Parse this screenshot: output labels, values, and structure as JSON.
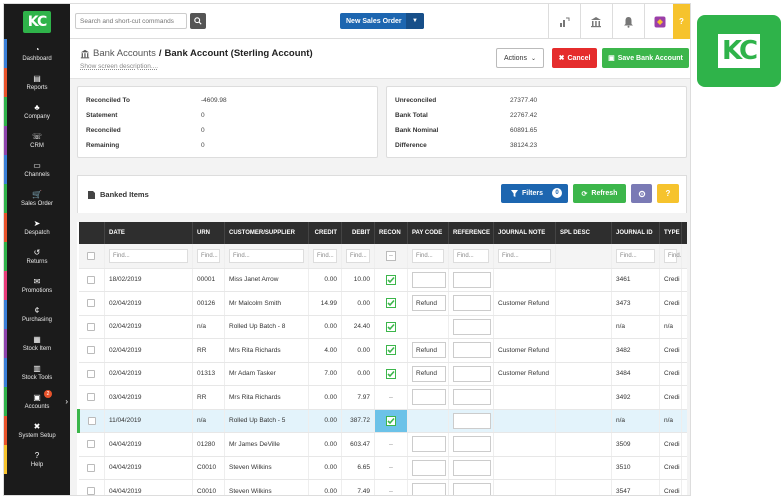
{
  "brand": {
    "logo_text": "KC"
  },
  "sidebar": {
    "items": [
      {
        "label": "Dashboard",
        "stripe": "#3a7fd8"
      },
      {
        "label": "Reports",
        "stripe": "#e8532b"
      },
      {
        "label": "Company",
        "stripe": "#2fb34a"
      },
      {
        "label": "CRM",
        "stripe": "#8e44ad"
      },
      {
        "label": "Channels",
        "stripe": "#3a7fd8"
      },
      {
        "label": "Sales Order",
        "stripe": "#2fb34a"
      },
      {
        "label": "Despatch",
        "stripe": "#e8532b"
      },
      {
        "label": "Returns",
        "stripe": "#2fb34a"
      },
      {
        "label": "Promotions",
        "stripe": "#e83b7a"
      },
      {
        "label": "Purchasing",
        "stripe": "#3a7fd8"
      },
      {
        "label": "Stock Item",
        "stripe": "#8e44ad"
      },
      {
        "label": "Stock Tools",
        "stripe": "#3a7fd8"
      },
      {
        "label": "Accounts",
        "stripe": "#2fb34a",
        "badge": "2"
      },
      {
        "label": "System Setup",
        "stripe": "#e8532b"
      },
      {
        "label": "Help",
        "stripe": "#f6c32d"
      }
    ]
  },
  "topbar": {
    "search_placeholder": "Search and short-cut commands",
    "new_sales_order": "New Sales Order",
    "help": "?"
  },
  "header": {
    "breadcrumb_parent": "Bank Accounts",
    "separator": "/",
    "title": "Bank Account (Sterling Account)",
    "screen_description": "Show screen description....",
    "actions": "Actions",
    "cancel": "Cancel",
    "save": "Save Bank Account"
  },
  "summary_left": [
    {
      "k": "Reconciled To",
      "v": "-4609.98"
    },
    {
      "k": "Statement",
      "v": "0"
    },
    {
      "k": "Reconciled",
      "v": "0"
    },
    {
      "k": "Remaining",
      "v": "0"
    }
  ],
  "summary_right": [
    {
      "k": "Unreconciled",
      "v": "27377.40"
    },
    {
      "k": "Bank Total",
      "v": "22767.42"
    },
    {
      "k": "Bank Nominal",
      "v": "60891.65"
    },
    {
      "k": "Difference",
      "v": "38124.23"
    }
  ],
  "banked": {
    "title": "Banked Items",
    "filters": "Filters",
    "filter_count": "0",
    "refresh": "Refresh",
    "question": "?"
  },
  "table": {
    "columns": [
      "",
      "DATE",
      "URN",
      "CUSTOMER/SUPPLIER",
      "CREDIT",
      "DEBIT",
      "RECON",
      "PAY CODE",
      "REFERENCE",
      "JOURNAL NOTE",
      "SPL DESC",
      "JOURNAL ID",
      "TYPE",
      ""
    ],
    "find_placeholder": "Find...",
    "find_short": "Find...",
    "rows": [
      {
        "date": "18/02/2019",
        "urn": "00001",
        "cust": "Miss Janet Arrow",
        "credit": "0.00",
        "debit": "10.00",
        "recon": "on",
        "pay": "",
        "note": "",
        "jid": "3461",
        "type": "Credi",
        "inputs": true
      },
      {
        "date": "02/04/2019",
        "urn": "00126",
        "cust": "Mr Malcolm Smith",
        "credit": "14.99",
        "debit": "0.00",
        "recon": "on",
        "pay": "Refund",
        "note": "Customer Refund",
        "jid": "3473",
        "type": "Credi",
        "inputs": true
      },
      {
        "date": "02/04/2019",
        "urn": "n/a",
        "cust": "Rolled Up Batch - 8",
        "credit": "0.00",
        "debit": "24.40",
        "recon": "on",
        "pay": "",
        "note": "",
        "jid": "n/a",
        "type": "n/a",
        "inputs": false
      },
      {
        "date": "02/04/2019",
        "urn": "RR",
        "cust": "Mrs Rita Richards",
        "credit": "4.00",
        "debit": "0.00",
        "recon": "on",
        "pay": "Refund",
        "note": "Customer Refund",
        "jid": "3482",
        "type": "Credi",
        "inputs": true
      },
      {
        "date": "02/04/2019",
        "urn": "01313",
        "cust": "Mr Adam Tasker",
        "credit": "7.00",
        "debit": "0.00",
        "recon": "on",
        "pay": "Refund",
        "note": "Customer Refund",
        "jid": "3484",
        "type": "Credi",
        "inputs": true
      },
      {
        "date": "03/04/2019",
        "urn": "RR",
        "cust": "Mrs Rita Richards",
        "credit": "0.00",
        "debit": "7.97",
        "recon": "dash",
        "pay": "",
        "note": "",
        "jid": "3492",
        "type": "Credi",
        "inputs": true
      },
      {
        "date": "11/04/2019",
        "urn": "n/a",
        "cust": "Rolled Up Batch - 5",
        "credit": "0.00",
        "debit": "387.72",
        "recon": "hl",
        "pay": "",
        "note": "",
        "jid": "n/a",
        "type": "n/a",
        "inputs": false,
        "highlight": true
      },
      {
        "date": "04/04/2019",
        "urn": "01280",
        "cust": "Mr James DeVille",
        "credit": "0.00",
        "debit": "603.47",
        "recon": "dash",
        "pay": "",
        "note": "",
        "jid": "3509",
        "type": "Credi",
        "inputs": true
      },
      {
        "date": "04/04/2019",
        "urn": "C0010",
        "cust": "Steven Wilkins",
        "credit": "0.00",
        "debit": "6.65",
        "recon": "dash",
        "pay": "",
        "note": "",
        "jid": "3510",
        "type": "Credi",
        "inputs": true
      },
      {
        "date": "04/04/2019",
        "urn": "C0010",
        "cust": "Steven Wilkins",
        "credit": "0.00",
        "debit": "7.49",
        "recon": "dash",
        "pay": "",
        "note": "",
        "jid": "3547",
        "type": "Credi",
        "inputs": true
      }
    ]
  },
  "colors": {
    "accent": "#2fb34a",
    "primary": "#1d66b0",
    "danger": "#e52c2c",
    "warning": "#f6c32d"
  }
}
